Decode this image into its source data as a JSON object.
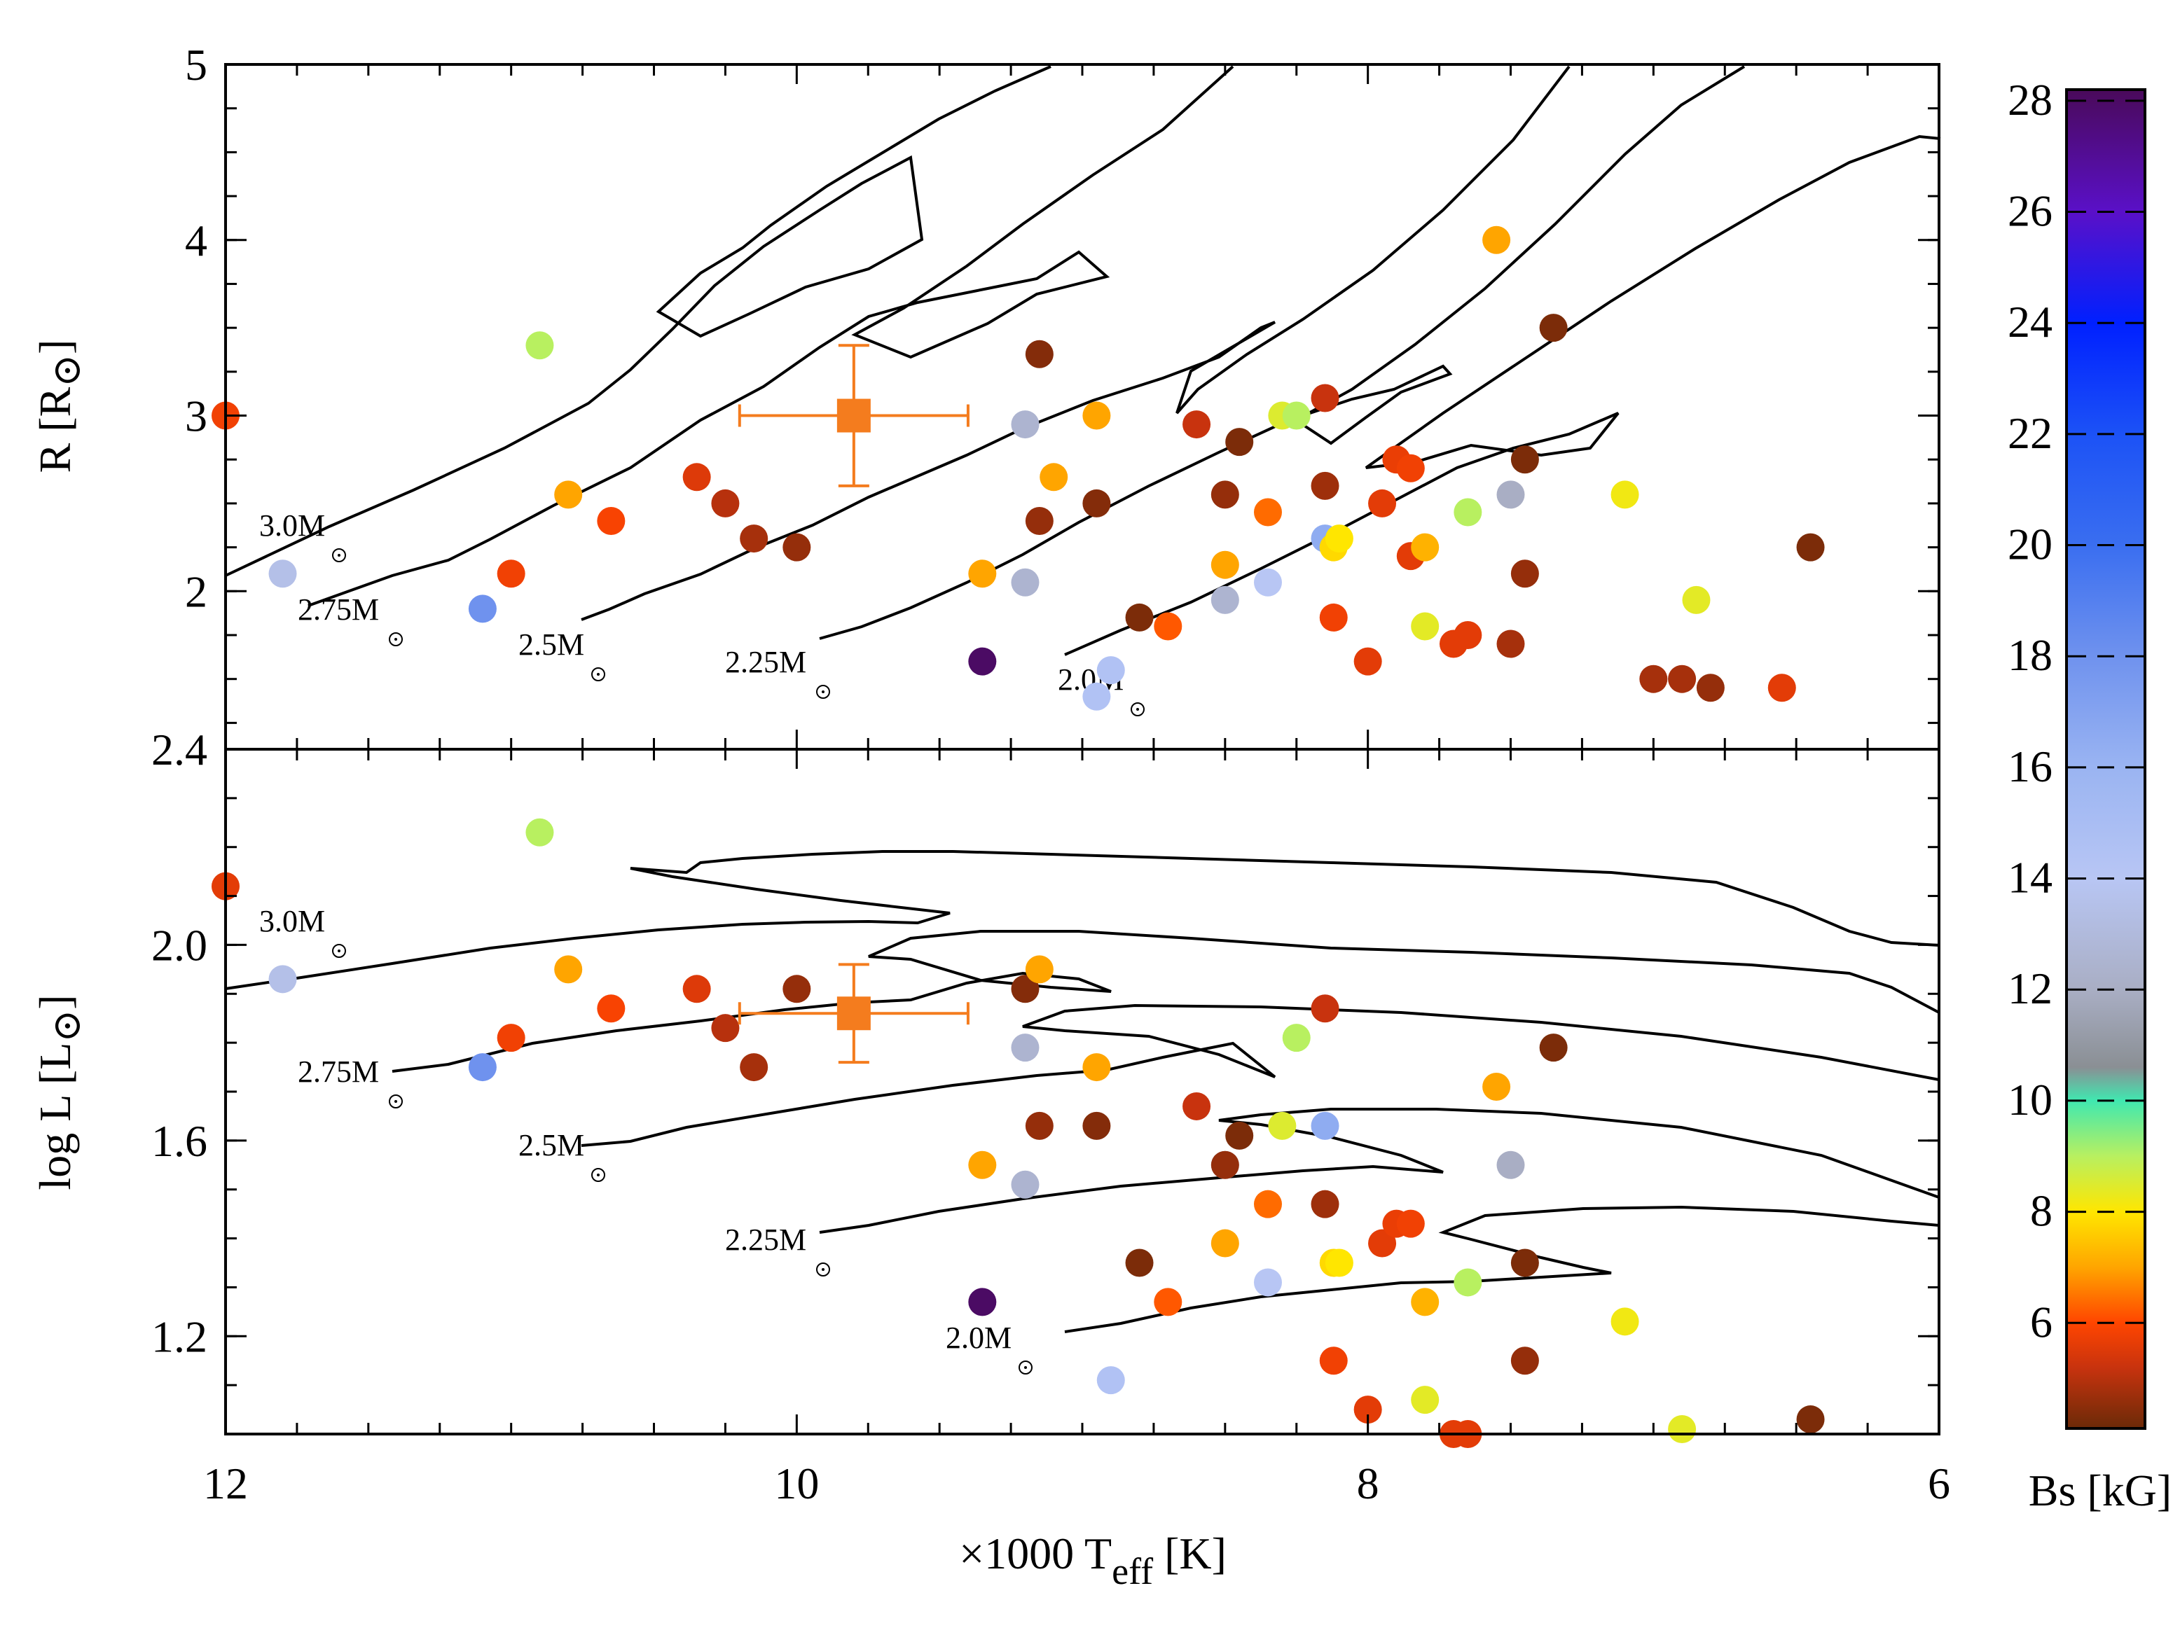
{
  "chart_data": [
    {
      "type": "scatter",
      "panel": "top",
      "ylabel": "R [R",
      "ylabel_sub": "⊙",
      "ylabel_close": "]",
      "x_reversed": true,
      "xlim": [
        12,
        6
      ],
      "ylim": [
        1.1,
        5
      ],
      "yticks": [
        "2",
        "3",
        "4",
        "5"
      ],
      "ytick_values": [
        2,
        3,
        4,
        5
      ],
      "track_labels": [
        "3.0M",
        "2.75M",
        "2.5M",
        "2.25M",
        "2.0M"
      ],
      "target": {
        "teff": 9.8,
        "value": 3.0,
        "xerr": 0.4,
        "yerr": 0.4,
        "color": "#f47c1e"
      },
      "points": [
        [
          12.0,
          3.0,
          5.8
        ],
        [
          10.9,
          3.4,
          9.0
        ],
        [
          11.8,
          2.1,
          13.5
        ],
        [
          11.1,
          1.9,
          18.0
        ],
        [
          11.0,
          2.1,
          5.8
        ],
        [
          10.8,
          2.55,
          7.0
        ],
        [
          10.65,
          2.4,
          5.9
        ],
        [
          10.35,
          2.65,
          5.5
        ],
        [
          10.25,
          2.5,
          5.0
        ],
        [
          10.15,
          2.3,
          4.8
        ],
        [
          10.0,
          2.25,
          4.6
        ],
        [
          9.35,
          2.1,
          7.0
        ],
        [
          9.2,
          2.05,
          12.5
        ],
        [
          9.2,
          2.95,
          12.5
        ],
        [
          9.15,
          2.4,
          4.6
        ],
        [
          9.15,
          3.35,
          4.4
        ],
        [
          9.1,
          2.65,
          7.0
        ],
        [
          8.95,
          2.5,
          4.4
        ],
        [
          8.95,
          3.0,
          7.0
        ],
        [
          8.9,
          1.55,
          14.5
        ],
        [
          9.35,
          1.6,
          28.0
        ],
        [
          8.8,
          1.85,
          4.3
        ],
        [
          8.7,
          1.8,
          6.2
        ],
        [
          8.6,
          2.95,
          5.2
        ],
        [
          8.5,
          1.95,
          12.5
        ],
        [
          8.5,
          2.55,
          4.6
        ],
        [
          8.5,
          2.15,
          7.0
        ],
        [
          8.45,
          2.85,
          4.3
        ],
        [
          8.35,
          2.05,
          14.0
        ],
        [
          8.35,
          2.45,
          6.4
        ],
        [
          8.3,
          3.0,
          8.5
        ],
        [
          8.25,
          3.0,
          9.0
        ],
        [
          8.15,
          3.1,
          5.2
        ],
        [
          8.15,
          2.3,
          16.5
        ],
        [
          8.15,
          2.6,
          4.7
        ],
        [
          8.12,
          2.25,
          7.8
        ],
        [
          8.1,
          2.3,
          8.0
        ],
        [
          8.12,
          1.85,
          5.8
        ],
        [
          7.95,
          2.5,
          5.6
        ],
        [
          7.9,
          2.75,
          5.7
        ],
        [
          7.85,
          2.7,
          5.8
        ],
        [
          7.85,
          2.2,
          5.6
        ],
        [
          7.8,
          2.25,
          7.2
        ],
        [
          7.8,
          1.8,
          8.4
        ],
        [
          7.7,
          1.7,
          5.6
        ],
        [
          7.65,
          1.75,
          5.6
        ],
        [
          7.65,
          2.45,
          9.0
        ],
        [
          7.55,
          4.0,
          7.0
        ],
        [
          7.5,
          1.7,
          4.8
        ],
        [
          7.5,
          2.55,
          12.0
        ],
        [
          7.45,
          2.1,
          4.6
        ],
        [
          7.45,
          2.75,
          4.3
        ],
        [
          7.35,
          3.5,
          4.3
        ],
        [
          7.1,
          2.55,
          8.2
        ],
        [
          7.0,
          1.5,
          4.8
        ],
        [
          6.9,
          1.5,
          4.8
        ],
        [
          6.85,
          1.95,
          8.4
        ],
        [
          6.8,
          1.45,
          4.6
        ],
        [
          6.55,
          1.45,
          5.6
        ],
        [
          6.45,
          2.25,
          4.3
        ],
        [
          8.95,
          1.4,
          14.5
        ],
        [
          8.0,
          1.6,
          5.6
        ]
      ]
    },
    {
      "type": "scatter",
      "panel": "bottom",
      "ylabel": "log L [L",
      "ylabel_sub": "⊙",
      "ylabel_close": "]",
      "x_reversed": true,
      "xlim": [
        12,
        6
      ],
      "ylim": [
        1.0,
        2.4
      ],
      "yticks": [
        "1.2",
        "1.6",
        "2.0",
        "2.4"
      ],
      "ytick_values": [
        1.2,
        1.6,
        2.0,
        2.4
      ],
      "track_labels": [
        "3.0M",
        "2.75M",
        "2.5M",
        "2.25M",
        "2.0M"
      ],
      "target": {
        "teff": 9.8,
        "value": 1.86,
        "xerr": 0.4,
        "yerr": 0.1,
        "color": "#f47c1e"
      },
      "points": [
        [
          12.0,
          2.12,
          5.6
        ],
        [
          10.9,
          2.23,
          9.0
        ],
        [
          11.8,
          1.93,
          13.5
        ],
        [
          11.1,
          1.75,
          18.0
        ],
        [
          11.0,
          1.81,
          5.8
        ],
        [
          10.8,
          1.95,
          7.0
        ],
        [
          10.65,
          1.87,
          5.9
        ],
        [
          10.35,
          1.91,
          5.5
        ],
        [
          10.25,
          1.83,
          5.0
        ],
        [
          10.15,
          1.75,
          4.8
        ],
        [
          10.0,
          1.91,
          4.6
        ],
        [
          9.35,
          1.55,
          7.0
        ],
        [
          9.2,
          1.51,
          12.5
        ],
        [
          9.2,
          1.79,
          12.5
        ],
        [
          9.15,
          1.63,
          4.6
        ],
        [
          9.2,
          1.91,
          4.4
        ],
        [
          9.15,
          1.95,
          7.0
        ],
        [
          8.95,
          1.63,
          4.4
        ],
        [
          8.95,
          1.75,
          7.0
        ],
        [
          8.9,
          1.11,
          14.5
        ],
        [
          9.35,
          1.27,
          28.0
        ],
        [
          8.8,
          1.35,
          4.3
        ],
        [
          8.7,
          1.27,
          6.2
        ],
        [
          8.6,
          1.67,
          5.2
        ],
        [
          8.5,
          1.55,
          12.5
        ],
        [
          8.5,
          1.55,
          4.6
        ],
        [
          8.5,
          1.39,
          7.0
        ],
        [
          8.45,
          1.61,
          4.3
        ],
        [
          8.35,
          1.31,
          14.0
        ],
        [
          8.35,
          1.47,
          6.4
        ],
        [
          8.3,
          1.63,
          8.5
        ],
        [
          8.25,
          1.81,
          9.0
        ],
        [
          8.15,
          1.87,
          5.2
        ],
        [
          8.15,
          1.63,
          16.5
        ],
        [
          8.15,
          1.47,
          4.7
        ],
        [
          8.12,
          1.35,
          7.8
        ],
        [
          8.1,
          1.35,
          8.0
        ],
        [
          8.12,
          1.15,
          5.8
        ],
        [
          7.95,
          1.39,
          5.6
        ],
        [
          7.9,
          1.43,
          5.7
        ],
        [
          7.85,
          1.43,
          5.8
        ],
        [
          7.8,
          1.27,
          7.2
        ],
        [
          7.8,
          1.07,
          8.4
        ],
        [
          8.0,
          1.05,
          5.6
        ],
        [
          7.7,
          1.0,
          5.6
        ],
        [
          7.65,
          1.0,
          5.6
        ],
        [
          7.65,
          1.31,
          9.0
        ],
        [
          7.55,
          1.71,
          7.0
        ],
        [
          7.5,
          1.55,
          12.0
        ],
        [
          7.45,
          1.15,
          4.6
        ],
        [
          7.45,
          1.35,
          4.3
        ],
        [
          7.35,
          1.79,
          4.3
        ],
        [
          7.1,
          1.23,
          8.2
        ],
        [
          6.9,
          1.01,
          8.4
        ],
        [
          6.45,
          1.03,
          4.3
        ]
      ]
    }
  ],
  "xaxis": {
    "label_prefix": "×1000 T",
    "label_sub": "eff",
    "label_suffix": " [K]",
    "ticks": [
      "12",
      "10",
      "8",
      "6"
    ],
    "tick_values": [
      12,
      10,
      8,
      6
    ]
  },
  "colorbar": {
    "label": "Bs [kG]",
    "ticks": [
      "6",
      "8",
      "10",
      "12",
      "14",
      "16",
      "18",
      "20",
      "22",
      "24",
      "26",
      "28"
    ],
    "tick_values": [
      6,
      8,
      10,
      12,
      14,
      16,
      18,
      20,
      22,
      24,
      26,
      28
    ],
    "range": [
      4.1,
      28.2
    ],
    "stops": [
      {
        "v": 4.1,
        "c": "#6b2a08"
      },
      {
        "v": 5.2,
        "c": "#c8330e"
      },
      {
        "v": 6.0,
        "c": "#ff4500"
      },
      {
        "v": 7.0,
        "c": "#ffa500"
      },
      {
        "v": 8.0,
        "c": "#ffe600"
      },
      {
        "v": 9.0,
        "c": "#b8f060"
      },
      {
        "v": 10.0,
        "c": "#40e8b0"
      },
      {
        "v": 10.6,
        "c": "#8a8f94"
      },
      {
        "v": 12.0,
        "c": "#a9aec4"
      },
      {
        "v": 14.0,
        "c": "#b8c6f4"
      },
      {
        "v": 16.0,
        "c": "#9ab4f2"
      },
      {
        "v": 18.0,
        "c": "#6f92ee"
      },
      {
        "v": 20.0,
        "c": "#3a6ef0"
      },
      {
        "v": 22.0,
        "c": "#1c52f6"
      },
      {
        "v": 24.0,
        "c": "#0020ff"
      },
      {
        "v": 26.0,
        "c": "#5a10c8"
      },
      {
        "v": 28.2,
        "c": "#4a0a5a"
      }
    ]
  }
}
